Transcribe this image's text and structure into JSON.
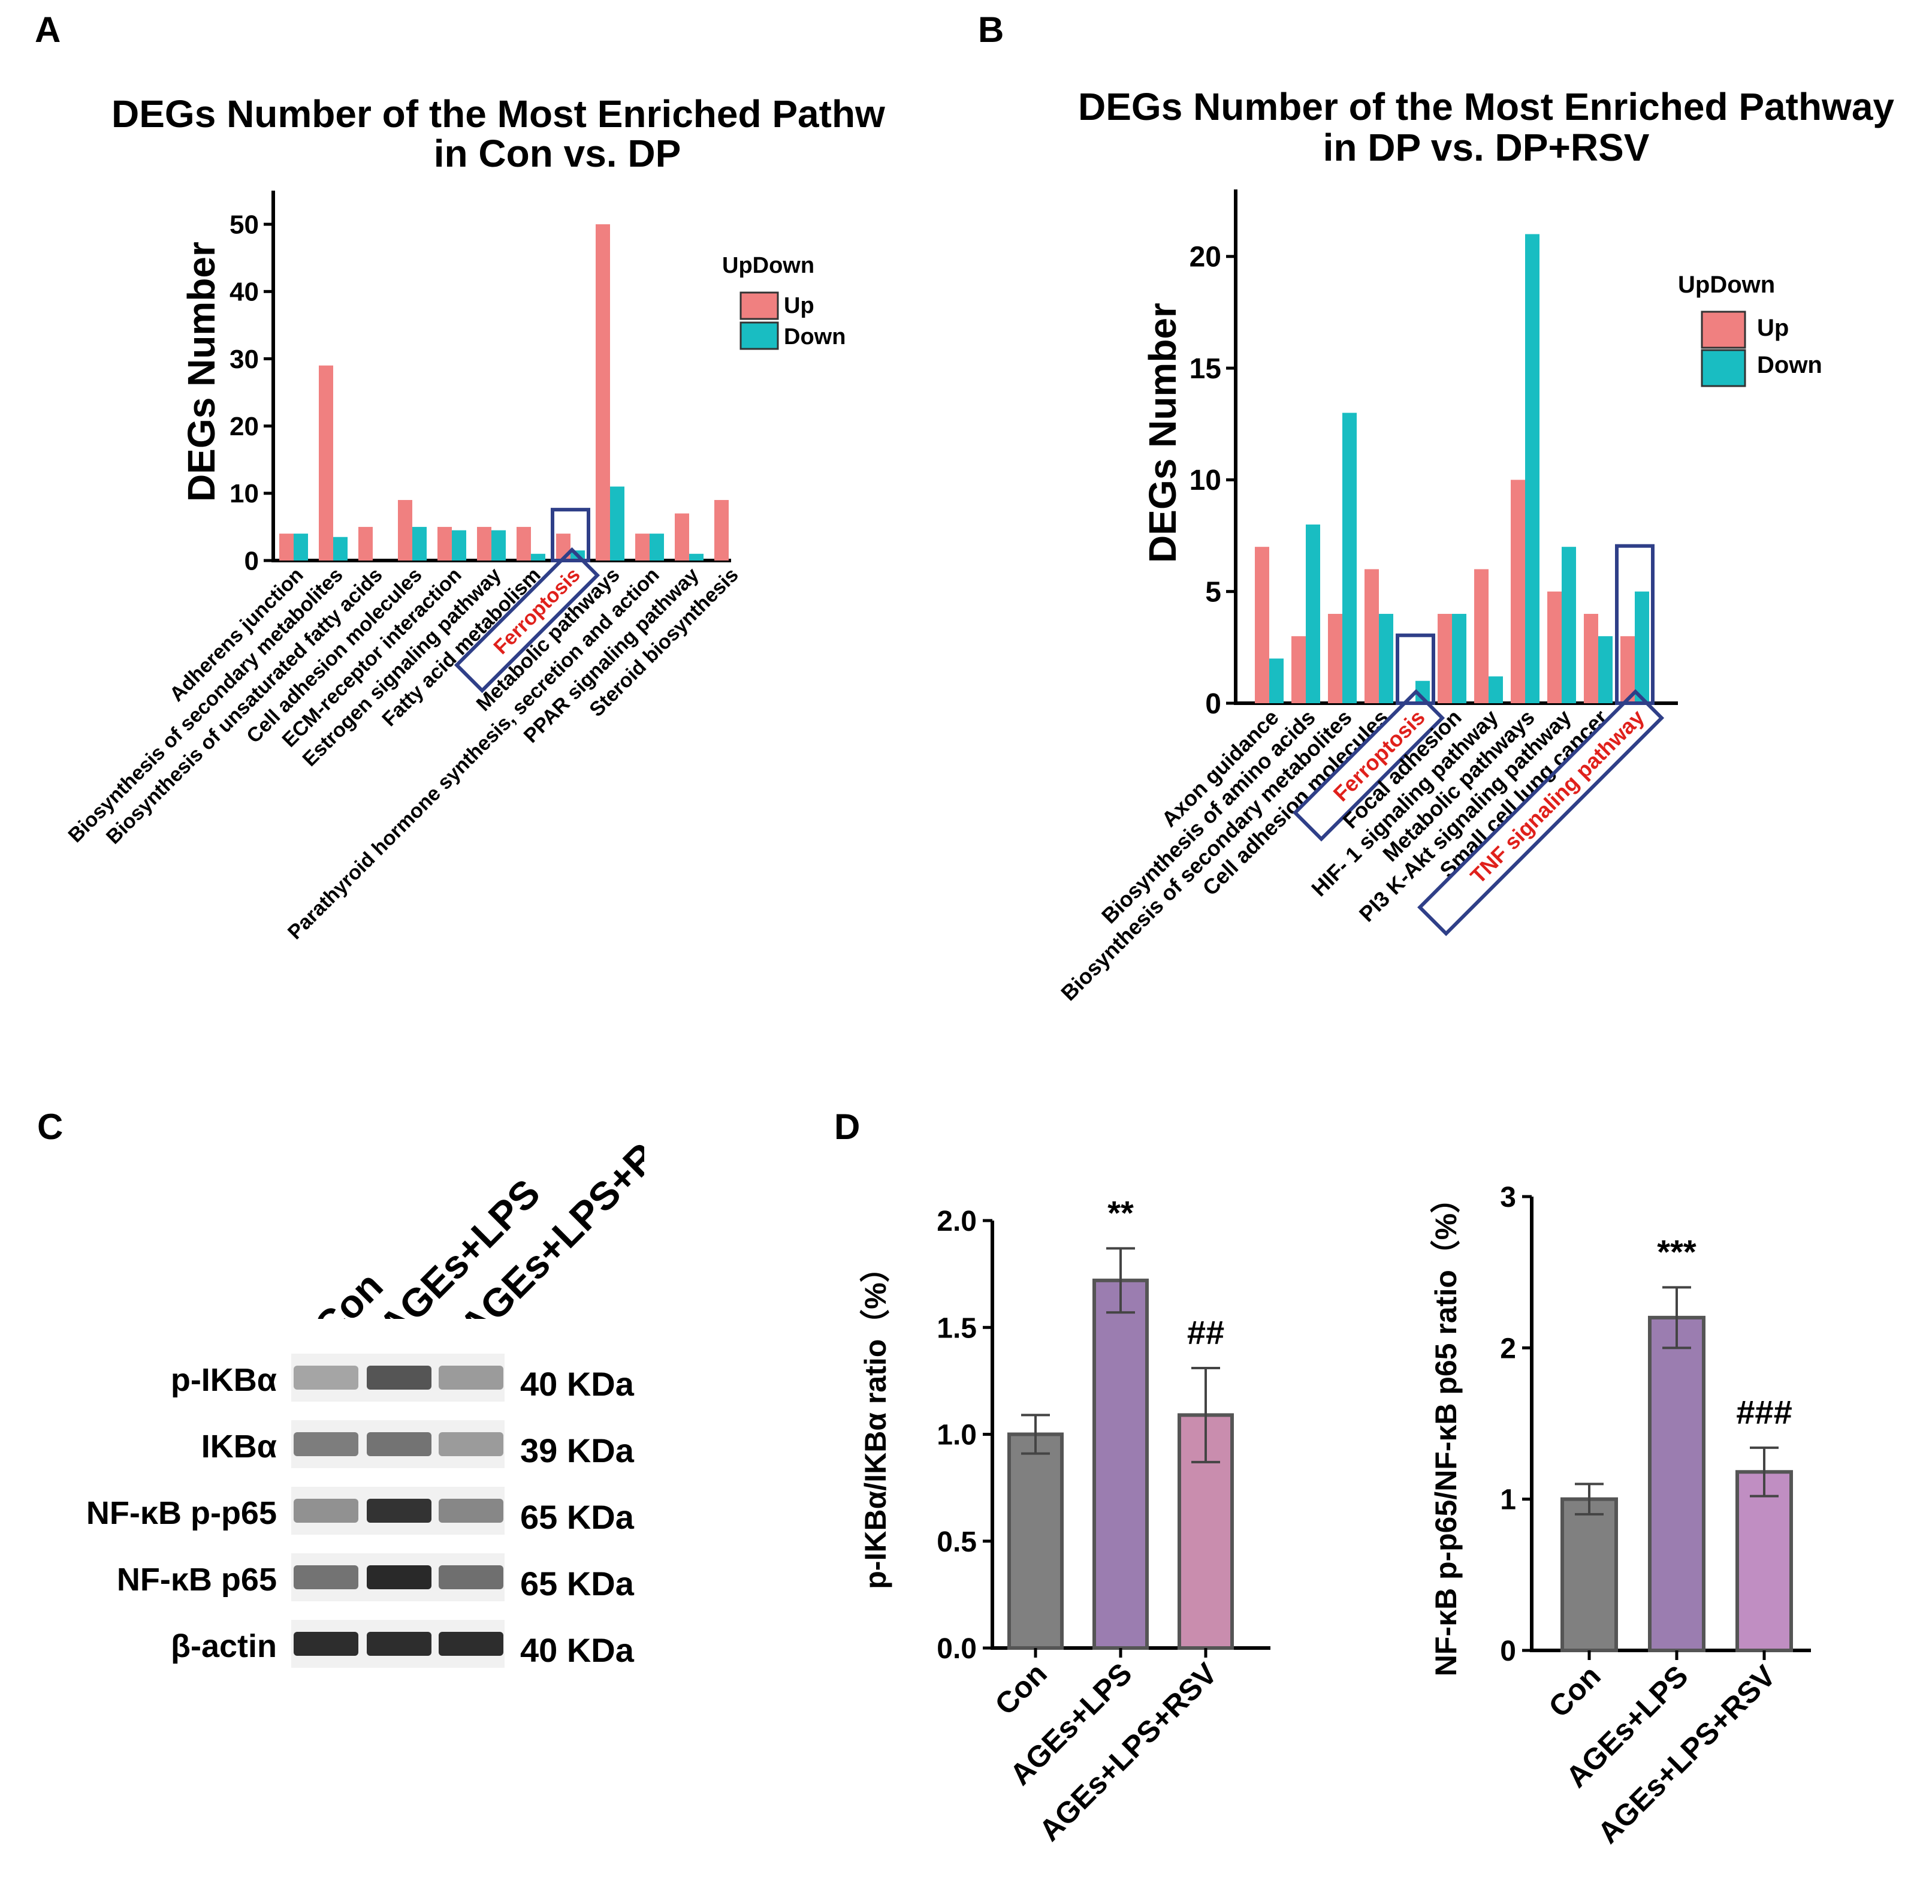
{
  "panels": {
    "A": {
      "letter": "A"
    },
    "B": {
      "letter": "B"
    },
    "C": {
      "letter": "C"
    },
    "D": {
      "letter": "D"
    }
  },
  "colors": {
    "up": "#F08080",
    "down": "#19BDC2",
    "box": "#2F3F88",
    "highlight": "#E0201B",
    "bar_con": "#808080",
    "bar_lps": "#9B7DB0",
    "bar_rsv_1": "#C98DAE",
    "bar_rsv_2": "#C08EC2",
    "bar_stroke": "#555555"
  },
  "chart_data": [
    {
      "id": "A",
      "type": "bar",
      "title_line1": "DEGs Number of the Most Enriched Pathw",
      "title_line2": "in Con vs. DP",
      "xlabel": "",
      "ylabel": "DEGs Number",
      "ylim": [
        0,
        55
      ],
      "yticks": [
        "0",
        "10",
        "20",
        "30",
        "40",
        "50"
      ],
      "ytick_values": [
        0,
        10,
        20,
        30,
        40,
        50
      ],
      "legend_title": "UpDown",
      "legend_labels": [
        "Up",
        "Down"
      ],
      "categories": [
        "Adherens junction",
        "Biosynthesis of secondary metabolites",
        "Biosynthesis of unsaturated fatty acids",
        "Cell adhesion molecules",
        "ECM-receptor interaction",
        "Estrogen signaling pathway",
        "Fatty acid metabolism",
        "Ferroptosis",
        "Metabolic pathways",
        "Parathyroid hormone synthesis, secretion and action",
        "PPAR signaling pathway",
        "Steroid biosynthesis"
      ],
      "highlight_index": 7,
      "series": [
        {
          "name": "Up",
          "values": [
            4,
            29,
            5,
            9,
            5,
            5,
            5,
            4,
            50,
            4,
            7,
            9
          ]
        },
        {
          "name": "Down",
          "values": [
            4,
            3.5,
            null,
            5,
            4.5,
            4.5,
            1,
            1.5,
            11,
            4,
            1,
            null
          ]
        }
      ]
    },
    {
      "id": "B",
      "type": "bar",
      "title_line1": "DEGs Number of the Most Enriched Pathway",
      "title_line2": "in DP vs. DP+RSV",
      "xlabel": "",
      "ylabel": "DEGs Number",
      "ylim": [
        0,
        23
      ],
      "yticks": [
        "0",
        "5",
        "10",
        "15",
        "20"
      ],
      "ytick_values": [
        0,
        5,
        10,
        15,
        20
      ],
      "legend_title": "UpDown",
      "legend_labels": [
        "Up",
        "Down"
      ],
      "categories": [
        "Axon guidance",
        "Biosynthesis of amino acids",
        "Biosynthesis of secondary metabolites",
        "Cell adhesion molecules",
        "Ferroptosis",
        "Focal adhesion",
        "HIF- 1  signaling pathway",
        "Metabolic pathways",
        "PI3 K-Akt signaling pathway",
        "Small cell lung cancer",
        "TNF signaling pathway"
      ],
      "highlight_indices": [
        4,
        10
      ],
      "series": [
        {
          "name": "Up",
          "values": [
            7,
            3,
            4,
            6,
            null,
            4,
            6,
            10,
            5,
            4,
            3
          ]
        },
        {
          "name": "Down",
          "values": [
            2,
            8,
            13,
            4,
            1,
            4,
            1.2,
            21,
            7,
            3,
            5
          ]
        }
      ]
    },
    {
      "id": "D1",
      "type": "bar",
      "title": "",
      "xlabel": "",
      "ylabel": "p-IKBα/IKBα ratio（%）",
      "ylim": [
        0,
        2.0
      ],
      "yticks": [
        "0.0",
        "0.5",
        "1.0",
        "1.5",
        "2.0"
      ],
      "ytick_values": [
        0,
        0.5,
        1.0,
        1.5,
        2.0
      ],
      "categories": [
        "Con",
        "AGEs+LPS",
        "AGEs+LPS+RSV"
      ],
      "values": [
        1.0,
        1.72,
        1.09
      ],
      "errors": [
        0.09,
        0.15,
        0.22
      ],
      "significance": [
        "",
        "**",
        "##"
      ]
    },
    {
      "id": "D2",
      "type": "bar",
      "title": "",
      "xlabel": "",
      "ylabel": "NF-κB p-p65/NF-κB p65 ratio（%）",
      "ylim": [
        0,
        3
      ],
      "yticks": [
        "0",
        "1",
        "2",
        "3"
      ],
      "ytick_values": [
        0,
        1,
        2,
        3
      ],
      "categories": [
        "Con",
        "AGEs+LPS",
        "AGEs+LPS+RSV"
      ],
      "values": [
        1.0,
        2.2,
        1.18
      ],
      "errors": [
        0.1,
        0.2,
        0.16
      ],
      "significance": [
        "",
        "***",
        "###"
      ]
    }
  ],
  "blot": {
    "lanes": [
      "Con",
      "AGEs+LPS",
      "AGEs+LPS+RS"
    ],
    "rows": [
      {
        "protein": "p-IKBα",
        "mw": "40 KDa",
        "intensity": [
          0.35,
          0.75,
          0.4
        ]
      },
      {
        "protein": "IKBα",
        "mw": "39 KDa",
        "intensity": [
          0.55,
          0.6,
          0.4
        ]
      },
      {
        "protein": "NF-κB p-p65",
        "mw": "65 KDa",
        "intensity": [
          0.45,
          0.92,
          0.5
        ]
      },
      {
        "protein": "NF-κB p65",
        "mw": "65 KDa",
        "intensity": [
          0.6,
          0.97,
          0.62
        ]
      },
      {
        "protein": "β-actin",
        "mw": "40 KDa",
        "intensity": [
          0.95,
          0.95,
          0.95
        ]
      }
    ]
  }
}
